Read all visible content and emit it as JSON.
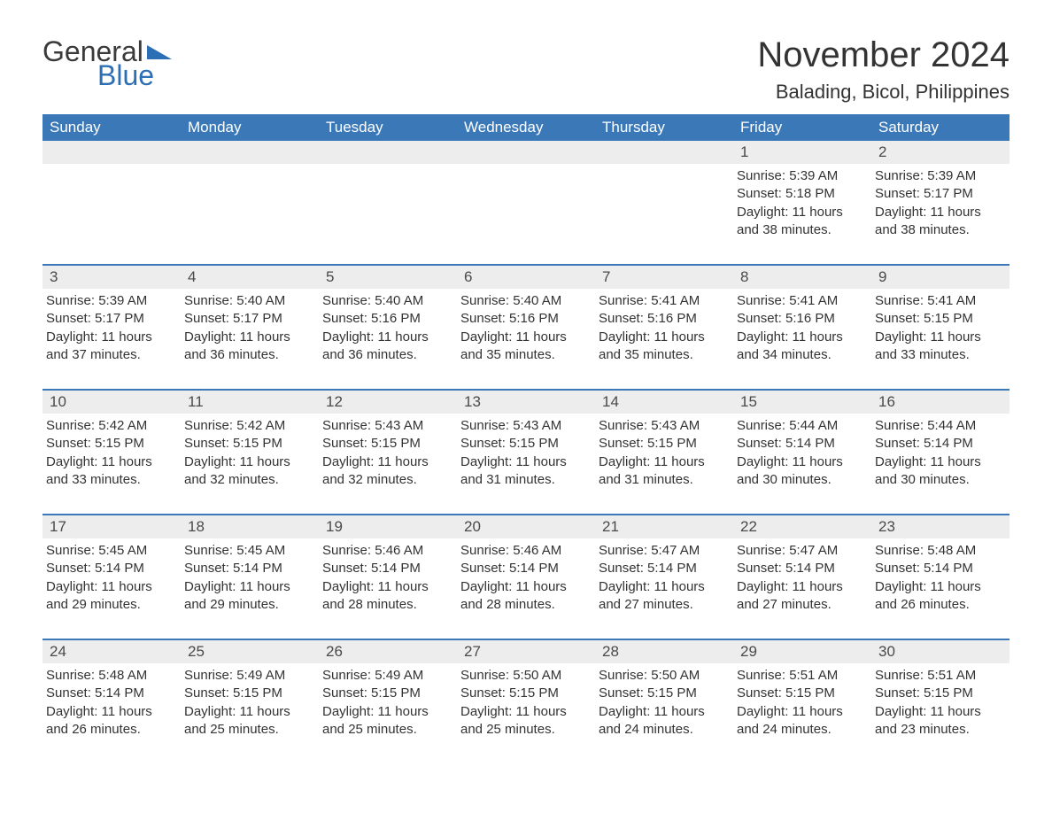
{
  "logo": {
    "part1": "General",
    "part2": "Blue"
  },
  "title": "November 2024",
  "location": "Balading, Bicol, Philippines",
  "colors": {
    "header_bg": "#3a78b8",
    "header_text": "#ffffff",
    "daynum_bg": "#ededed",
    "text": "#333333",
    "logo_blue": "#2d6fb5",
    "week_border": "#3a78b8"
  },
  "day_names": [
    "Sunday",
    "Monday",
    "Tuesday",
    "Wednesday",
    "Thursday",
    "Friday",
    "Saturday"
  ],
  "weeks": [
    [
      null,
      null,
      null,
      null,
      null,
      {
        "day": "1",
        "sunrise": "Sunrise: 5:39 AM",
        "sunset": "Sunset: 5:18 PM",
        "daylight1": "Daylight: 11 hours",
        "daylight2": "and 38 minutes."
      },
      {
        "day": "2",
        "sunrise": "Sunrise: 5:39 AM",
        "sunset": "Sunset: 5:17 PM",
        "daylight1": "Daylight: 11 hours",
        "daylight2": "and 38 minutes."
      }
    ],
    [
      {
        "day": "3",
        "sunrise": "Sunrise: 5:39 AM",
        "sunset": "Sunset: 5:17 PM",
        "daylight1": "Daylight: 11 hours",
        "daylight2": "and 37 minutes."
      },
      {
        "day": "4",
        "sunrise": "Sunrise: 5:40 AM",
        "sunset": "Sunset: 5:17 PM",
        "daylight1": "Daylight: 11 hours",
        "daylight2": "and 36 minutes."
      },
      {
        "day": "5",
        "sunrise": "Sunrise: 5:40 AM",
        "sunset": "Sunset: 5:16 PM",
        "daylight1": "Daylight: 11 hours",
        "daylight2": "and 36 minutes."
      },
      {
        "day": "6",
        "sunrise": "Sunrise: 5:40 AM",
        "sunset": "Sunset: 5:16 PM",
        "daylight1": "Daylight: 11 hours",
        "daylight2": "and 35 minutes."
      },
      {
        "day": "7",
        "sunrise": "Sunrise: 5:41 AM",
        "sunset": "Sunset: 5:16 PM",
        "daylight1": "Daylight: 11 hours",
        "daylight2": "and 35 minutes."
      },
      {
        "day": "8",
        "sunrise": "Sunrise: 5:41 AM",
        "sunset": "Sunset: 5:16 PM",
        "daylight1": "Daylight: 11 hours",
        "daylight2": "and 34 minutes."
      },
      {
        "day": "9",
        "sunrise": "Sunrise: 5:41 AM",
        "sunset": "Sunset: 5:15 PM",
        "daylight1": "Daylight: 11 hours",
        "daylight2": "and 33 minutes."
      }
    ],
    [
      {
        "day": "10",
        "sunrise": "Sunrise: 5:42 AM",
        "sunset": "Sunset: 5:15 PM",
        "daylight1": "Daylight: 11 hours",
        "daylight2": "and 33 minutes."
      },
      {
        "day": "11",
        "sunrise": "Sunrise: 5:42 AM",
        "sunset": "Sunset: 5:15 PM",
        "daylight1": "Daylight: 11 hours",
        "daylight2": "and 32 minutes."
      },
      {
        "day": "12",
        "sunrise": "Sunrise: 5:43 AM",
        "sunset": "Sunset: 5:15 PM",
        "daylight1": "Daylight: 11 hours",
        "daylight2": "and 32 minutes."
      },
      {
        "day": "13",
        "sunrise": "Sunrise: 5:43 AM",
        "sunset": "Sunset: 5:15 PM",
        "daylight1": "Daylight: 11 hours",
        "daylight2": "and 31 minutes."
      },
      {
        "day": "14",
        "sunrise": "Sunrise: 5:43 AM",
        "sunset": "Sunset: 5:15 PM",
        "daylight1": "Daylight: 11 hours",
        "daylight2": "and 31 minutes."
      },
      {
        "day": "15",
        "sunrise": "Sunrise: 5:44 AM",
        "sunset": "Sunset: 5:14 PM",
        "daylight1": "Daylight: 11 hours",
        "daylight2": "and 30 minutes."
      },
      {
        "day": "16",
        "sunrise": "Sunrise: 5:44 AM",
        "sunset": "Sunset: 5:14 PM",
        "daylight1": "Daylight: 11 hours",
        "daylight2": "and 30 minutes."
      }
    ],
    [
      {
        "day": "17",
        "sunrise": "Sunrise: 5:45 AM",
        "sunset": "Sunset: 5:14 PM",
        "daylight1": "Daylight: 11 hours",
        "daylight2": "and 29 minutes."
      },
      {
        "day": "18",
        "sunrise": "Sunrise: 5:45 AM",
        "sunset": "Sunset: 5:14 PM",
        "daylight1": "Daylight: 11 hours",
        "daylight2": "and 29 minutes."
      },
      {
        "day": "19",
        "sunrise": "Sunrise: 5:46 AM",
        "sunset": "Sunset: 5:14 PM",
        "daylight1": "Daylight: 11 hours",
        "daylight2": "and 28 minutes."
      },
      {
        "day": "20",
        "sunrise": "Sunrise: 5:46 AM",
        "sunset": "Sunset: 5:14 PM",
        "daylight1": "Daylight: 11 hours",
        "daylight2": "and 28 minutes."
      },
      {
        "day": "21",
        "sunrise": "Sunrise: 5:47 AM",
        "sunset": "Sunset: 5:14 PM",
        "daylight1": "Daylight: 11 hours",
        "daylight2": "and 27 minutes."
      },
      {
        "day": "22",
        "sunrise": "Sunrise: 5:47 AM",
        "sunset": "Sunset: 5:14 PM",
        "daylight1": "Daylight: 11 hours",
        "daylight2": "and 27 minutes."
      },
      {
        "day": "23",
        "sunrise": "Sunrise: 5:48 AM",
        "sunset": "Sunset: 5:14 PM",
        "daylight1": "Daylight: 11 hours",
        "daylight2": "and 26 minutes."
      }
    ],
    [
      {
        "day": "24",
        "sunrise": "Sunrise: 5:48 AM",
        "sunset": "Sunset: 5:14 PM",
        "daylight1": "Daylight: 11 hours",
        "daylight2": "and 26 minutes."
      },
      {
        "day": "25",
        "sunrise": "Sunrise: 5:49 AM",
        "sunset": "Sunset: 5:15 PM",
        "daylight1": "Daylight: 11 hours",
        "daylight2": "and 25 minutes."
      },
      {
        "day": "26",
        "sunrise": "Sunrise: 5:49 AM",
        "sunset": "Sunset: 5:15 PM",
        "daylight1": "Daylight: 11 hours",
        "daylight2": "and 25 minutes."
      },
      {
        "day": "27",
        "sunrise": "Sunrise: 5:50 AM",
        "sunset": "Sunset: 5:15 PM",
        "daylight1": "Daylight: 11 hours",
        "daylight2": "and 25 minutes."
      },
      {
        "day": "28",
        "sunrise": "Sunrise: 5:50 AM",
        "sunset": "Sunset: 5:15 PM",
        "daylight1": "Daylight: 11 hours",
        "daylight2": "and 24 minutes."
      },
      {
        "day": "29",
        "sunrise": "Sunrise: 5:51 AM",
        "sunset": "Sunset: 5:15 PM",
        "daylight1": "Daylight: 11 hours",
        "daylight2": "and 24 minutes."
      },
      {
        "day": "30",
        "sunrise": "Sunrise: 5:51 AM",
        "sunset": "Sunset: 5:15 PM",
        "daylight1": "Daylight: 11 hours",
        "daylight2": "and 23 minutes."
      }
    ]
  ]
}
